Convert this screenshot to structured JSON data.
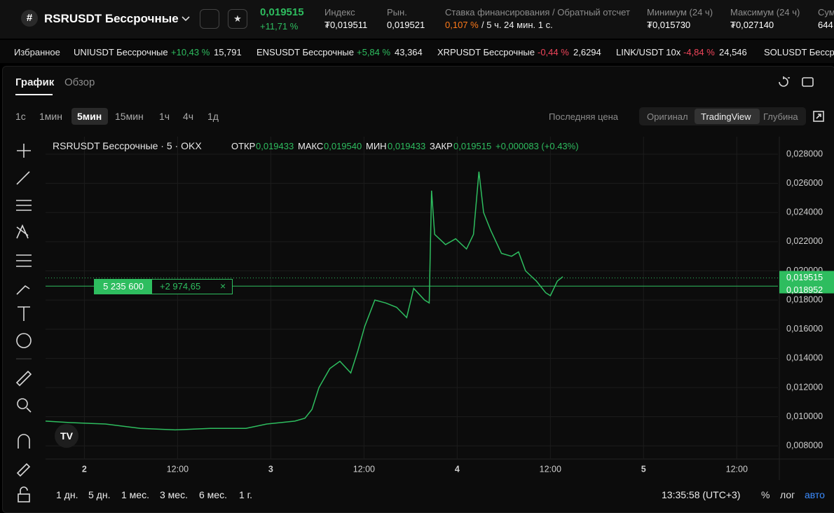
{
  "header": {
    "symbol": "RSRUSDT Бессрочные",
    "price": "0,019515",
    "change": "+11,71 %",
    "stats": [
      {
        "label": "Индекс",
        "value": "₮0,019511"
      },
      {
        "label": "Рын.",
        "value": "0,019521"
      },
      {
        "label": "Ставка финансирования / Обратный отсчет",
        "value": "0,107 %",
        "extra": "/ 5 ч. 24 мин. 1 с."
      },
      {
        "label": "Минимум (24 ч)",
        "value": "₮0,015730"
      },
      {
        "label": "Максимум (24 ч)",
        "value": "₮0,027140"
      },
      {
        "label": "Сум",
        "value": "644"
      }
    ]
  },
  "ticker_strip": {
    "title": "Избранное",
    "items": [
      {
        "name": "UNIUSDT Бессрочные",
        "change": "+10,43 %",
        "price": "15,791",
        "color": "#2ebd5f"
      },
      {
        "name": "ENSUSDT Бессрочные",
        "change": "+5,84 %",
        "price": "43,364",
        "color": "#2ebd5f"
      },
      {
        "name": "XRPUSDT Бессрочные",
        "change": "-0,44 %",
        "price": "2,6294",
        "color": "#f0455a"
      },
      {
        "name": "LINK/USDT 10x",
        "change": "-4,84 %",
        "price": "24,546",
        "color": "#f0455a"
      },
      {
        "name": "SOLUSDT Бессрочные",
        "change": "",
        "price": "",
        "color": "#2ebd5f"
      }
    ]
  },
  "tabs": [
    "График",
    "Обзор"
  ],
  "toolbar": {
    "intervals": [
      "1с",
      "1мин",
      "5мин",
      "15мин",
      "1ч",
      "4ч",
      "1д"
    ],
    "price_source": "Последняя цена",
    "views": [
      "Оригинал",
      "TradingView",
      "Глубина"
    ]
  },
  "chart_data": {
    "type": "line",
    "legend": {
      "title": "RSRUSDT Бессрочные · 5 · OKX",
      "fields": [
        {
          "label": "ОТКР",
          "value": "0,019433"
        },
        {
          "label": "МАКС",
          "value": "0,019540"
        },
        {
          "label": "МИН",
          "value": "0,019433"
        },
        {
          "label": "ЗАКР",
          "value": "0,019515"
        }
      ],
      "change": "+0,000083 (+0.43%)"
    },
    "x": [
      -5.0,
      -1.8,
      2.7,
      7.2,
      11.7,
      16.2,
      20.8,
      23.5,
      27.1,
      28.4,
      29.3,
      30.2,
      31.6,
      32.9,
      34.3,
      35.2,
      36.1,
      37.4,
      38.8,
      40.2,
      41.5,
      42.4,
      43.8,
      44.4,
      44.7,
      45.1,
      46.5,
      47.8,
      49.2,
      50.1,
      50.8,
      51.4,
      52.3,
      53.7,
      55.0,
      55.9,
      56.8,
      58.2,
      59.4,
      60.0,
      60.9,
      61.6
    ],
    "series": [
      {
        "name": "RSRUSDT",
        "color": "#2ebd5f",
        "values": [
          0.0097,
          0.0096,
          0.0095,
          0.0092,
          0.0091,
          0.0092,
          0.0092,
          0.0095,
          0.0097,
          0.0099,
          0.0105,
          0.012,
          0.0133,
          0.0138,
          0.013,
          0.0145,
          0.0162,
          0.018,
          0.0178,
          0.0175,
          0.0168,
          0.0188,
          0.018,
          0.0178,
          0.0255,
          0.0225,
          0.0218,
          0.0222,
          0.0215,
          0.0225,
          0.0268,
          0.024,
          0.0228,
          0.0212,
          0.021,
          0.0213,
          0.02,
          0.0193,
          0.0185,
          0.0183,
          0.0193,
          0.0196
        ]
      }
    ],
    "xlim": [
      -5.0,
      89.3
    ],
    "xticks": [
      {
        "value": 0,
        "label": "2"
      },
      {
        "value": 12,
        "label": "12:00"
      },
      {
        "value": 24,
        "label": "3"
      },
      {
        "value": 36,
        "label": "12:00"
      },
      {
        "value": 48,
        "label": "4"
      },
      {
        "value": 60,
        "label": "12:00"
      },
      {
        "value": 72,
        "label": "5"
      },
      {
        "value": 84,
        "label": "12:00"
      }
    ],
    "ylim": [
      0.0071,
      0.0292
    ],
    "yticks": [
      {
        "value": 0.008,
        "label": "0,008000"
      },
      {
        "value": 0.01,
        "label": "0,010000"
      },
      {
        "value": 0.012,
        "label": "0,012000"
      },
      {
        "value": 0.014,
        "label": "0,014000"
      },
      {
        "value": 0.016,
        "label": "0,016000"
      },
      {
        "value": 0.018,
        "label": "0,018000"
      },
      {
        "value": 0.02,
        "label": "0,020000"
      },
      {
        "value": 0.022,
        "label": "0,022000"
      },
      {
        "value": 0.024,
        "label": "0,024000"
      },
      {
        "value": 0.026,
        "label": "0,026000"
      },
      {
        "value": 0.028,
        "label": "0,028000"
      }
    ],
    "grid": true,
    "last_price": {
      "value": 0.019515,
      "label": "0,019515"
    },
    "position_price": {
      "value": 0.018952,
      "label": "0,018952"
    },
    "position": {
      "size": "5 235 600",
      "pnl": "+2 974,65",
      "close": "×"
    }
  },
  "bottom_bar": {
    "ranges": [
      "1 дн.",
      "5 дн.",
      "1 мес.",
      "3 мес.",
      "6 мес.",
      "1 г."
    ],
    "clock": "13:35:58 (UTC+3)",
    "options": [
      "%",
      "лог",
      "авто"
    ]
  }
}
